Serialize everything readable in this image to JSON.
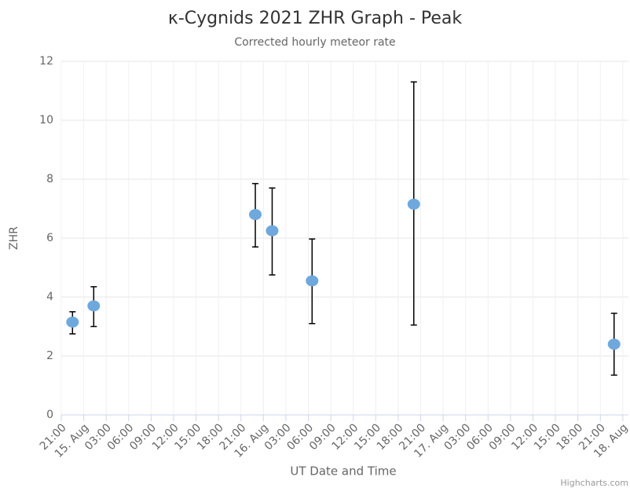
{
  "chart_data": {
    "type": "scatter",
    "title": "κ-Cygnids 2021 ZHR Graph - Peak",
    "subtitle": "Corrected hourly meteor rate",
    "x_label": "UT Date and Time",
    "y_label": "ZHR",
    "credits": "Highcharts.com",
    "series": [
      {
        "name": "ZHR",
        "color": "#6fa8dc",
        "x": [
          "14. Aug 22:30",
          "15. Aug 01:20",
          "15. Aug 22:55",
          "16. Aug 01:10",
          "16. Aug 06:30",
          "16. Aug 20:05",
          "17. Aug 22:50"
        ],
        "values": [
          3.15,
          3.7,
          6.8,
          6.25,
          4.55,
          7.15,
          2.4
        ],
        "low": [
          2.75,
          3.0,
          5.7,
          4.75,
          3.1,
          3.05,
          1.35
        ],
        "high": [
          3.5,
          4.35,
          7.85,
          7.7,
          5.97,
          11.3,
          3.45
        ]
      }
    ],
    "xlim": [
      "14. Aug 21:00",
      "18. Aug 00:45"
    ],
    "xticks": [
      {
        "value": "14. Aug 21:00",
        "label": "21:00"
      },
      {
        "value": "15. Aug 00:00",
        "label": "15. Aug"
      },
      {
        "value": "15. Aug 03:00",
        "label": "03:00"
      },
      {
        "value": "15. Aug 06:00",
        "label": "06:00"
      },
      {
        "value": "15. Aug 09:00",
        "label": "09:00"
      },
      {
        "value": "15. Aug 12:00",
        "label": "12:00"
      },
      {
        "value": "15. Aug 15:00",
        "label": "15:00"
      },
      {
        "value": "15. Aug 18:00",
        "label": "18:00"
      },
      {
        "value": "15. Aug 21:00",
        "label": "21:00"
      },
      {
        "value": "16. Aug 00:00",
        "label": "16. Aug"
      },
      {
        "value": "16. Aug 03:00",
        "label": "03:00"
      },
      {
        "value": "16. Aug 06:00",
        "label": "06:00"
      },
      {
        "value": "16. Aug 09:00",
        "label": "09:00"
      },
      {
        "value": "16. Aug 12:00",
        "label": "12:00"
      },
      {
        "value": "16. Aug 15:00",
        "label": "15:00"
      },
      {
        "value": "16. Aug 18:00",
        "label": "18:00"
      },
      {
        "value": "16. Aug 21:00",
        "label": "21:00"
      },
      {
        "value": "17. Aug 00:00",
        "label": "17. Aug"
      },
      {
        "value": "17. Aug 03:00",
        "label": "03:00"
      },
      {
        "value": "17. Aug 06:00",
        "label": "06:00"
      },
      {
        "value": "17. Aug 09:00",
        "label": "09:00"
      },
      {
        "value": "17. Aug 12:00",
        "label": "12:00"
      },
      {
        "value": "17. Aug 15:00",
        "label": "15:00"
      },
      {
        "value": "17. Aug 18:00",
        "label": "18:00"
      },
      {
        "value": "17. Aug 21:00",
        "label": "21:00"
      },
      {
        "value": "18. Aug 00:00",
        "label": "18. Aug"
      }
    ],
    "ylim": [
      0,
      12
    ],
    "yticks": [
      0,
      2,
      4,
      6,
      8,
      10,
      12
    ],
    "grid": true
  }
}
